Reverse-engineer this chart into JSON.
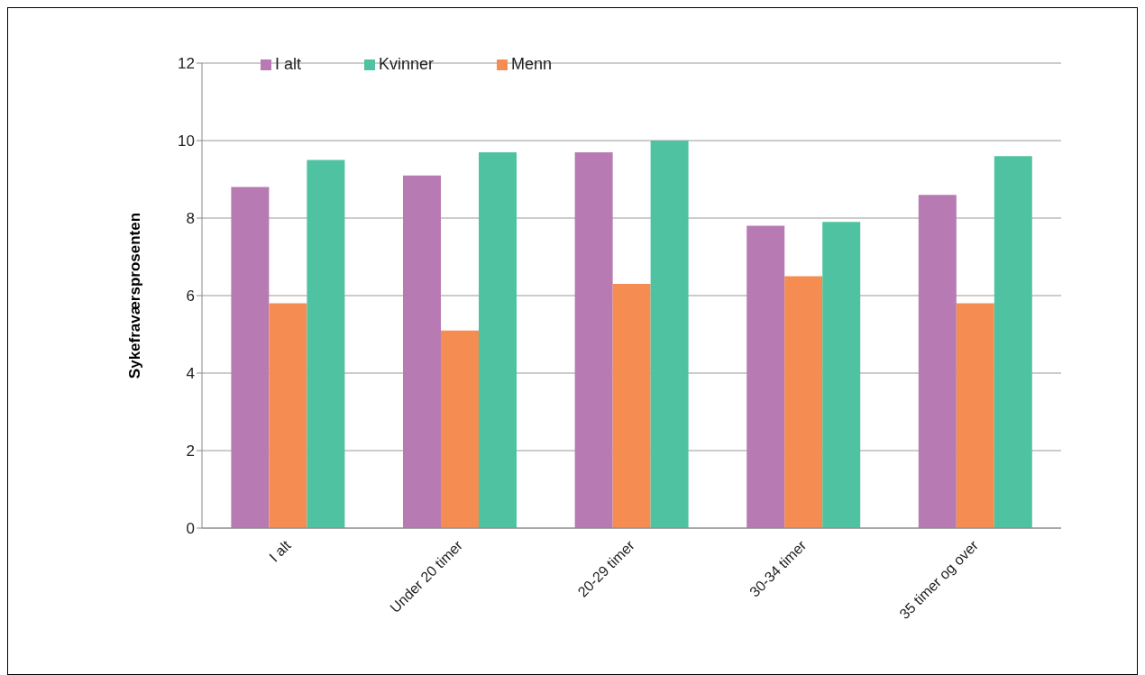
{
  "chart_data": {
    "type": "bar",
    "ylabel": "Sykefraværsprosenten",
    "categories": [
      "I alt",
      "Under 20 timer",
      "20-29 timer",
      "30-34 timer",
      "35 timer og over"
    ],
    "series": [
      {
        "name": "I alt",
        "color": "#b77ab3",
        "values": [
          8.8,
          9.1,
          9.7,
          7.8,
          8.6
        ]
      },
      {
        "name": "Menn",
        "color": "#f58d53",
        "values": [
          5.8,
          5.1,
          6.3,
          6.5,
          5.8
        ]
      },
      {
        "name": "Kvinner",
        "color": "#4fc3a1",
        "values": [
          9.5,
          9.7,
          10.0,
          7.9,
          9.6
        ]
      }
    ],
    "ylim": [
      0,
      12
    ],
    "yticks": [
      0,
      2,
      4,
      6,
      8,
      10,
      12
    ],
    "grid": "y",
    "legend": "top left"
  }
}
